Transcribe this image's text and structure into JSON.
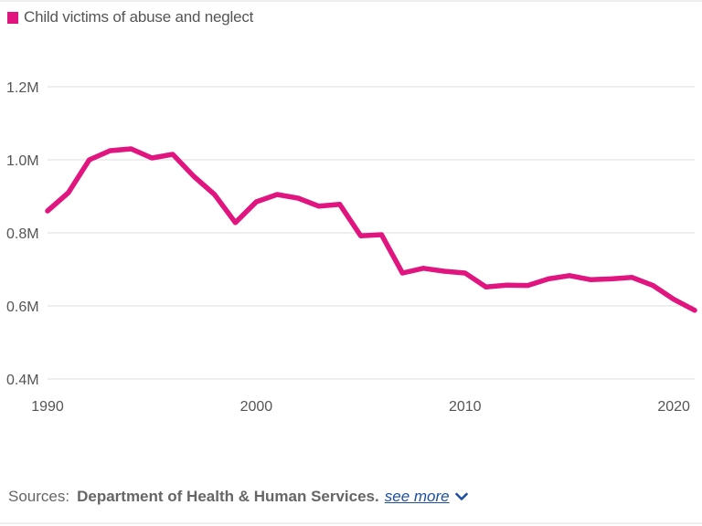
{
  "colors": {
    "series": "#e0157f",
    "grid": "#dddddd",
    "axis_text": "#555555",
    "link": "#1e4fa0"
  },
  "legend": {
    "label": "Child victims of abuse and neglect"
  },
  "sources": {
    "label": "Sources:",
    "name": "Department of Health & Human Services.",
    "see_more": "see more",
    "see_more_icon": "chevron-down-icon"
  },
  "chart_data": {
    "type": "line",
    "series": [
      {
        "name": "Child victims of abuse and neglect",
        "x": [
          1990,
          1991,
          1992,
          1993,
          1994,
          1995,
          1996,
          1997,
          1998,
          1999,
          2000,
          2001,
          2002,
          2003,
          2004,
          2005,
          2006,
          2007,
          2008,
          2009,
          2010,
          2011,
          2012,
          2013,
          2014,
          2015,
          2016,
          2017,
          2018,
          2019,
          2020,
          2021
        ],
        "values": [
          860000,
          910000,
          1000000,
          1025000,
          1030000,
          1005000,
          1015000,
          955000,
          905000,
          828000,
          885000,
          905000,
          895000,
          873000,
          878000,
          792000,
          795000,
          690000,
          703000,
          695000,
          690000,
          652000,
          657000,
          656000,
          674000,
          683000,
          672000,
          674000,
          678000,
          656000,
          618000,
          588000
        ]
      }
    ],
    "y_ticks": [
      "0.4M",
      "0.6M",
      "0.8M",
      "1.0M",
      "1.2M"
    ],
    "y_tick_values": [
      400000,
      600000,
      800000,
      1000000,
      1200000
    ],
    "x_ticks": [
      "1990",
      "2000",
      "2010",
      "2020"
    ],
    "x_tick_values": [
      1990,
      2000,
      2010,
      2020
    ],
    "xlim": [
      1990,
      2021
    ],
    "ylim": [
      400000,
      1200000
    ],
    "grid": true,
    "legend_position": "top-left"
  }
}
